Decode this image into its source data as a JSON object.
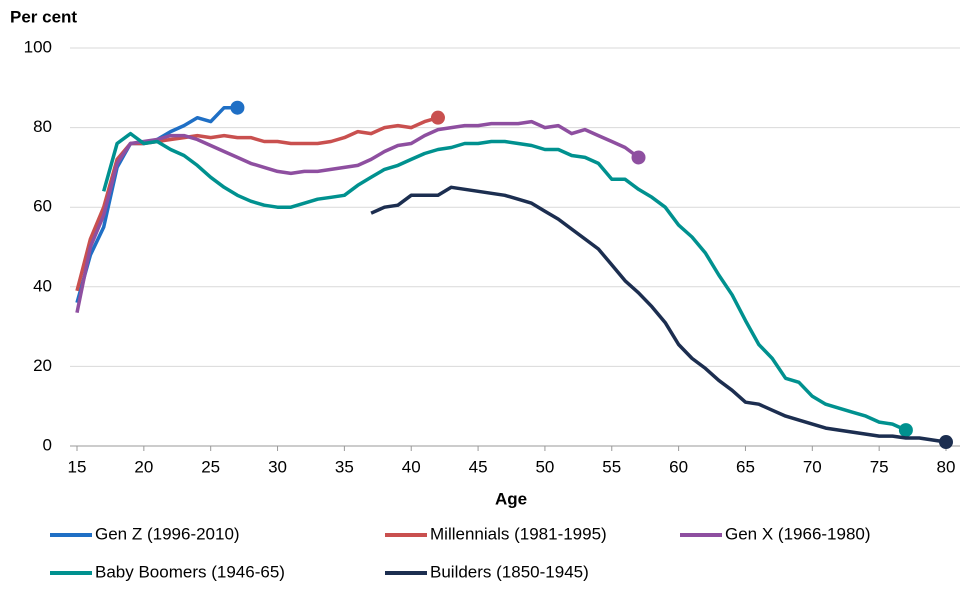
{
  "chart_data": {
    "type": "line",
    "y_label": "Per cent",
    "x_label": "Age",
    "xlim": [
      15,
      80
    ],
    "xticks": [
      15,
      20,
      25,
      30,
      35,
      40,
      45,
      50,
      55,
      60,
      65,
      70,
      75,
      80
    ],
    "ylim": [
      0,
      100
    ],
    "yticks": [
      0,
      20,
      40,
      60,
      80,
      100
    ],
    "grid": true,
    "end_markers": true,
    "legend": "bottom",
    "series": [
      {
        "name": "Gen Z (1996-2010)",
        "color": "#1f6fc5",
        "x": [
          15,
          16,
          17,
          18,
          19,
          20,
          21,
          22,
          23,
          24,
          25,
          26,
          27
        ],
        "values": [
          36,
          48,
          55,
          70,
          76,
          76,
          77,
          79,
          80.5,
          82.5,
          81.5,
          85,
          85
        ]
      },
      {
        "name": "Millennials (1981-1995)",
        "color": "#c9504f",
        "x": [
          15,
          16,
          17,
          18,
          19,
          20,
          21,
          22,
          23,
          24,
          25,
          26,
          27,
          28,
          29,
          30,
          31,
          32,
          33,
          34,
          35,
          36,
          37,
          38,
          39,
          40,
          41,
          42
        ],
        "values": [
          39,
          52,
          60,
          72,
          76,
          76,
          76.5,
          77,
          77.5,
          78,
          77.5,
          78,
          77.5,
          77.5,
          76.5,
          76.5,
          76,
          76,
          76,
          76.5,
          77.5,
          79,
          78.5,
          80,
          80.5,
          80,
          81.5,
          82.5
        ]
      },
      {
        "name": "Gen X (1966-1980)",
        "color": "#8e4fa0",
        "x": [
          15,
          16,
          17,
          18,
          19,
          20,
          21,
          22,
          23,
          24,
          25,
          26,
          27,
          28,
          29,
          30,
          31,
          32,
          33,
          34,
          35,
          36,
          37,
          38,
          39,
          40,
          41,
          42,
          43,
          44,
          45,
          46,
          47,
          48,
          49,
          50,
          51,
          52,
          53,
          54,
          55,
          56,
          57
        ],
        "values": [
          33.5,
          50,
          58,
          71,
          76,
          76.5,
          77,
          78,
          78,
          77,
          75.5,
          74,
          72.5,
          71,
          70,
          69,
          68.5,
          69,
          69,
          69.5,
          70,
          70.5,
          72,
          74,
          75.5,
          76,
          78,
          79.5,
          80,
          80.5,
          80.5,
          81,
          81,
          81,
          81.5,
          80,
          80.5,
          78.5,
          79.5,
          78,
          76.5,
          75,
          72.5
        ]
      },
      {
        "name": "Baby Boomers (1946-65)",
        "color": "#00918f",
        "x": [
          17,
          18,
          19,
          20,
          21,
          22,
          23,
          24,
          25,
          26,
          27,
          28,
          29,
          30,
          31,
          32,
          33,
          34,
          35,
          36,
          37,
          38,
          39,
          40,
          41,
          42,
          43,
          44,
          45,
          46,
          47,
          48,
          49,
          50,
          51,
          52,
          53,
          54,
          55,
          56,
          57,
          58,
          59,
          60,
          61,
          62,
          63,
          64,
          65,
          66,
          67,
          68,
          69,
          70,
          71,
          72,
          73,
          74,
          75,
          76,
          77
        ],
        "values": [
          64,
          76,
          78.5,
          76,
          76.5,
          74.5,
          73,
          70.5,
          67.5,
          65,
          63,
          61.5,
          60.5,
          60,
          60,
          61,
          62,
          62.5,
          63,
          65.5,
          67.5,
          69.5,
          70.5,
          72,
          73.5,
          74.5,
          75,
          76,
          76,
          76.5,
          76.5,
          76,
          75.5,
          74.5,
          74.5,
          73,
          72.5,
          71,
          67,
          67,
          64.5,
          62.5,
          60,
          55.5,
          52.5,
          48.5,
          43,
          38,
          31.5,
          25.5,
          22,
          17,
          16,
          12.5,
          10.5,
          9.5,
          8.5,
          7.5,
          6,
          5.5,
          4
        ]
      },
      {
        "name": "Builders (1850-1945)",
        "color": "#1c2e50",
        "x": [
          37,
          38,
          39,
          40,
          41,
          42,
          43,
          44,
          45,
          46,
          47,
          48,
          49,
          50,
          51,
          52,
          53,
          54,
          55,
          56,
          57,
          58,
          59,
          60,
          61,
          62,
          63,
          64,
          65,
          66,
          67,
          68,
          69,
          70,
          71,
          72,
          73,
          74,
          75,
          76,
          77,
          78,
          79,
          80
        ],
        "values": [
          58.5,
          60,
          60.5,
          63,
          63,
          63,
          65,
          64.5,
          64,
          63.5,
          63,
          62,
          61,
          59,
          57,
          54.5,
          52,
          49.5,
          45.5,
          41.5,
          38.5,
          35,
          31,
          25.5,
          22,
          19.5,
          16.5,
          14,
          11,
          10.5,
          9,
          7.5,
          6.5,
          5.5,
          4.5,
          4,
          3.5,
          3,
          2.5,
          2.5,
          2,
          2,
          1.5,
          1
        ]
      }
    ]
  }
}
